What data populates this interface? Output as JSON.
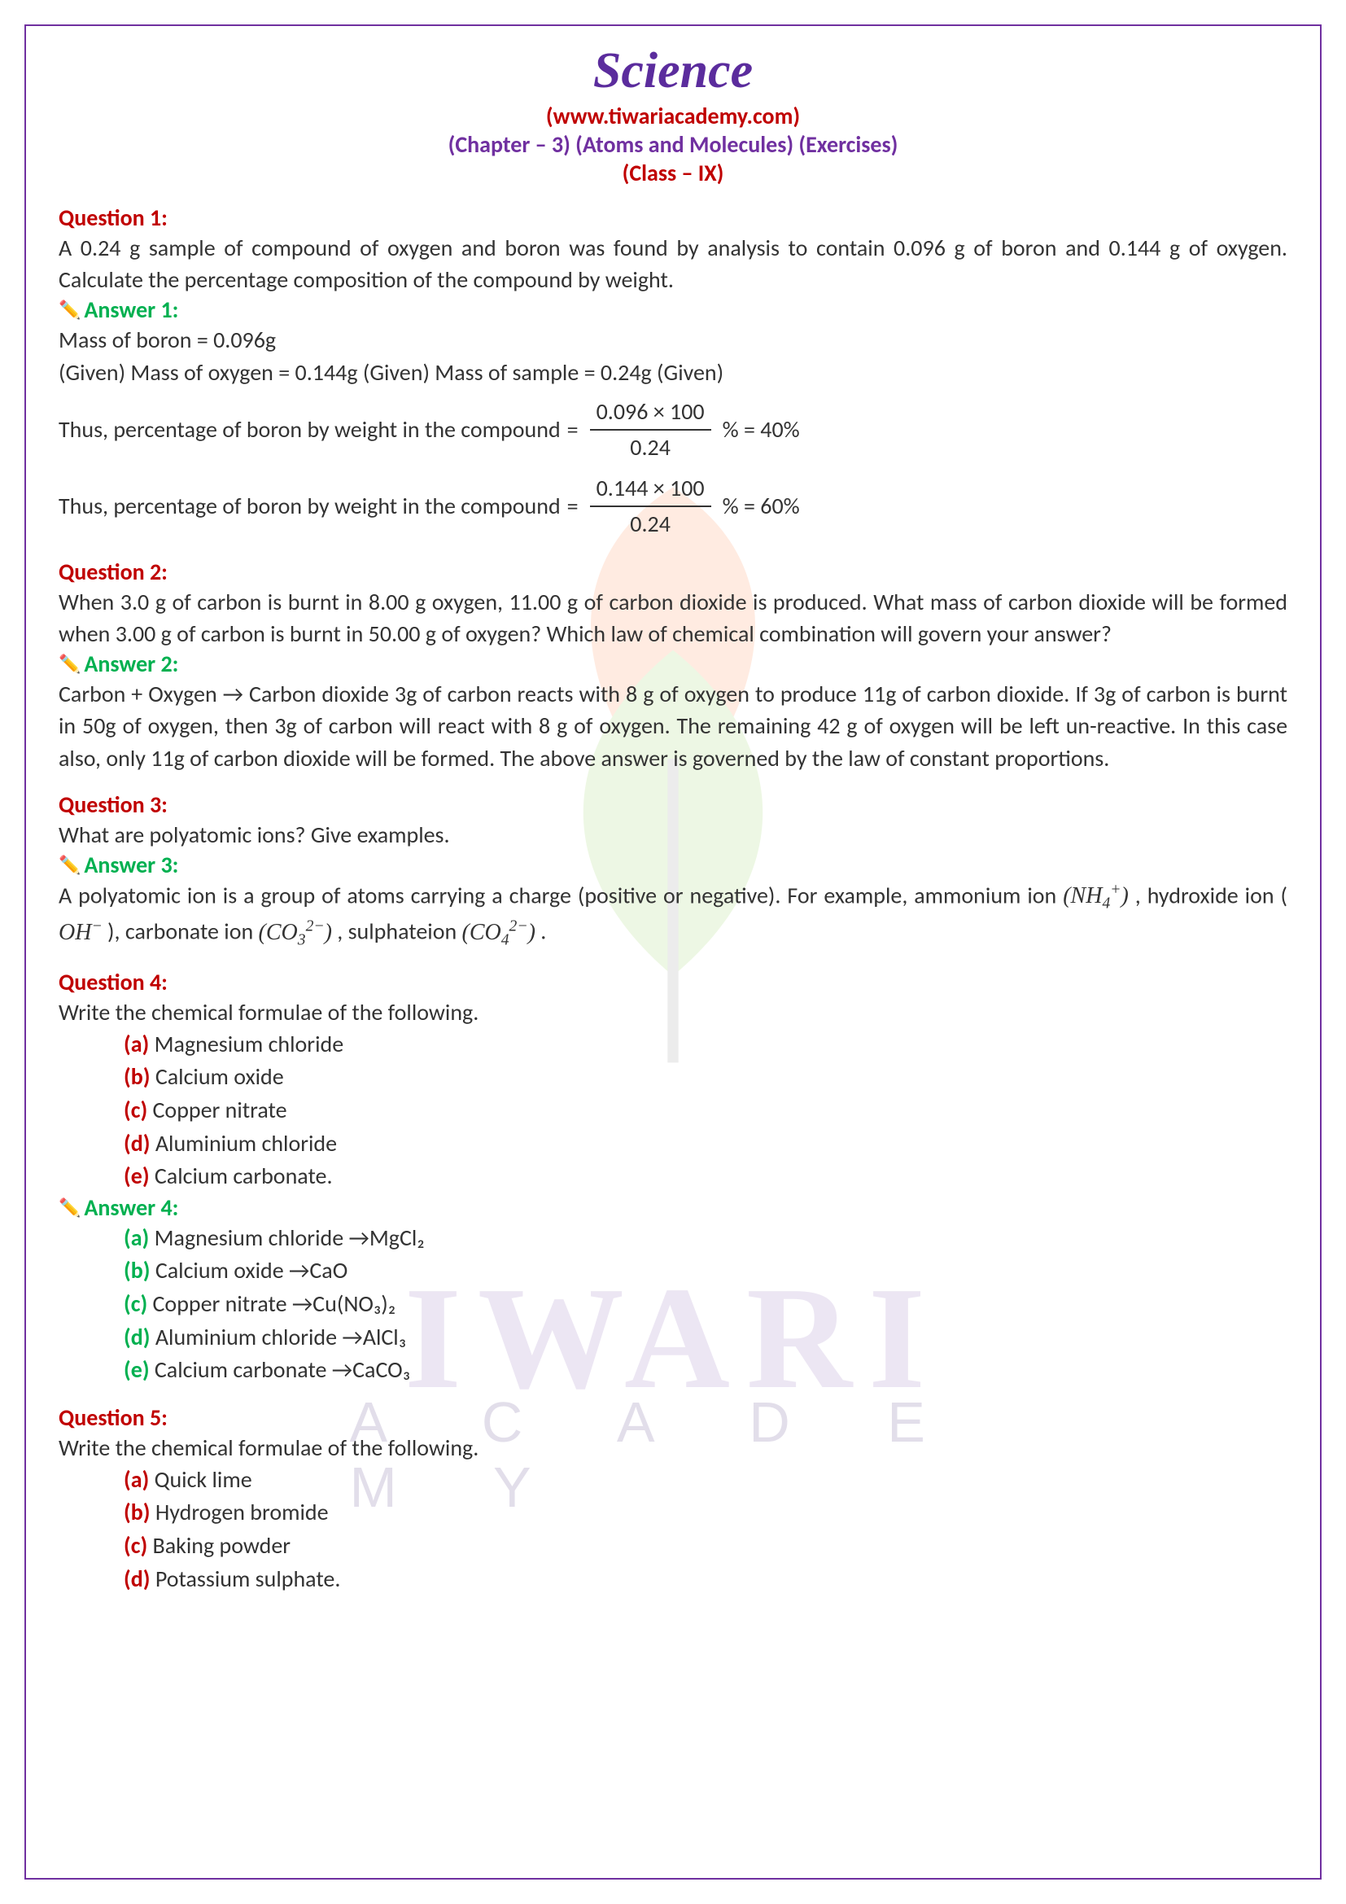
{
  "header": {
    "title": "Science",
    "website": "(www.tiwariacademy.com)",
    "chapter": "(Chapter – 3) (Atoms and Molecules) (Exercises)",
    "class_line": "(Class – IX)"
  },
  "watermark": {
    "main": "IWARI",
    "sub": "A C A D E M Y",
    "leaf_color_top": "#ff7f3f",
    "leaf_color_bottom": "#8fd14f",
    "stem_color": "#888888"
  },
  "colors": {
    "title": "#5b2c9d",
    "red": "#c00000",
    "purple": "#7030a0",
    "green": "#00b050",
    "body": "#333333",
    "border": "#7030a0"
  },
  "q1": {
    "label": "Question 1:",
    "text": "A 0.24 g sample of compound of oxygen and boron was found by analysis to contain 0.096 g of boron and 0.144 g of oxygen. Calculate the percentage composition of the compound by weight.",
    "ans_label": "Answer 1:",
    "line1": "Mass of boron = 0.096g",
    "line2": "(Given) Mass of oxygen = 0.144g (Given) Mass of sample = 0.24g (Given)",
    "calc1_pre": "Thus, percentage of boron by weight in the compound",
    "calc1_num": "0.096 × 100",
    "calc1_den": "0.24",
    "calc1_post": "% = 40%",
    "calc2_pre": "Thus, percentage of boron by weight in the compound",
    "calc2_num": "0.144 × 100",
    "calc2_den": "0.24",
    "calc2_post": "% = 60%"
  },
  "q2": {
    "label": "Question 2:",
    "text": "When 3.0 g of carbon is burnt in 8.00 g oxygen, 11.00 g of carbon dioxide is produced. What mass of carbon dioxide will be formed when 3.00 g of carbon is burnt in 50.00 g of oxygen? Which law of chemical combination will govern your answer?",
    "ans_label": "Answer 2:",
    "ans_text": "Carbon + Oxygen → Carbon dioxide 3g of carbon reacts with 8 g of oxygen to produce 11g of carbon dioxide. If 3g of carbon is burnt in 50g of oxygen, then 3g of carbon will react with 8 g of oxygen. The remaining 42 g of oxygen will be left un-reactive. In this case also, only 11g of carbon dioxide will be formed. The above answer is governed by the law of constant proportions."
  },
  "q3": {
    "label": "Question 3:",
    "text": "What are polyatomic ions? Give examples.",
    "ans_label": "Answer 3:",
    "ans_text_pre": "A polyatomic ion is a group of atoms carrying a charge (positive or negative). For example, ammonium ion",
    "ans_text_mid1": ", hydroxide ion (",
    "ans_text_mid2": "), carbonate ion",
    "ans_text_mid3": ", sulphateion ",
    "ans_text_end": "."
  },
  "q4": {
    "label": "Question 4:",
    "text": "Write the chemical formulae of the following.",
    "items": [
      {
        "k": "(a)",
        "v": "Magnesium chloride"
      },
      {
        "k": "(b)",
        "v": "Calcium oxide"
      },
      {
        "k": "(c)",
        "v": "Copper nitrate"
      },
      {
        "k": "(d)",
        "v": "Aluminium chloride"
      },
      {
        "k": "(e)",
        "v": "Calcium carbonate."
      }
    ],
    "ans_label": "Answer 4:",
    "ans_items": [
      {
        "k": "(a)",
        "v": "Magnesium chloride →MgCl₂"
      },
      {
        "k": "(b)",
        "v": " Calcium oxide →CaO"
      },
      {
        "k": "(c)",
        "v": " Copper nitrate →Cu(NO₃)₂"
      },
      {
        "k": "(d)",
        "v": " Aluminium chloride →AlCl₃"
      },
      {
        "k": "(e)",
        "v": " Calcium carbonate →CaCO₃"
      }
    ]
  },
  "q5": {
    "label": "Question 5:",
    "text": "Write the chemical formulae of the following.",
    "items": [
      {
        "k": "(a)",
        "v": " Quick lime"
      },
      {
        "k": "(b)",
        "v": " Hydrogen bromide"
      },
      {
        "k": "(c)",
        "v": " Baking powder"
      },
      {
        "k": "(d)",
        "v": " Potassium sulphate."
      }
    ]
  }
}
